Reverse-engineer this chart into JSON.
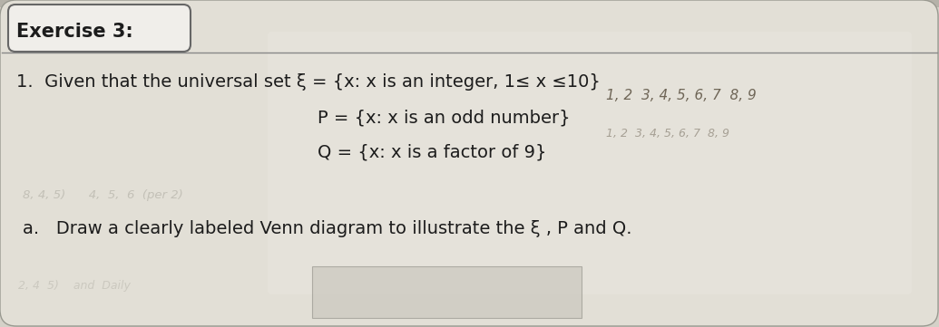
{
  "title_box_text": "Exercise 3:",
  "line1": "1.  Given that the universal set ξ = {x: x is an integer, 1≤ x ≤10}",
  "line2": "P = {x: x is an odd number}",
  "line3": "Q = {x: x is a factor of 9}",
  "line4": "a.   Draw a clearly labeled Venn diagram to illustrate the ξ , P and Q.",
  "handwritten_numbers": "1, 2  3, 4, 5, 6, 7  8, 9",
  "bg_color_top": "#c8c5bc",
  "bg_color_main": "#d4d1c8",
  "paper_color": "#e2dfd6",
  "paper_light": "#eceae3",
  "box_bg": "#f0eeea",
  "box_border": "#666666",
  "text_color": "#1c1c1c",
  "text_color_mid": "#2a2a2a",
  "hand_color": "#5a5040",
  "line_color": "#888888",
  "font_size_main": 14,
  "font_size_hand": 10,
  "answer_box_color": "#cac7be"
}
